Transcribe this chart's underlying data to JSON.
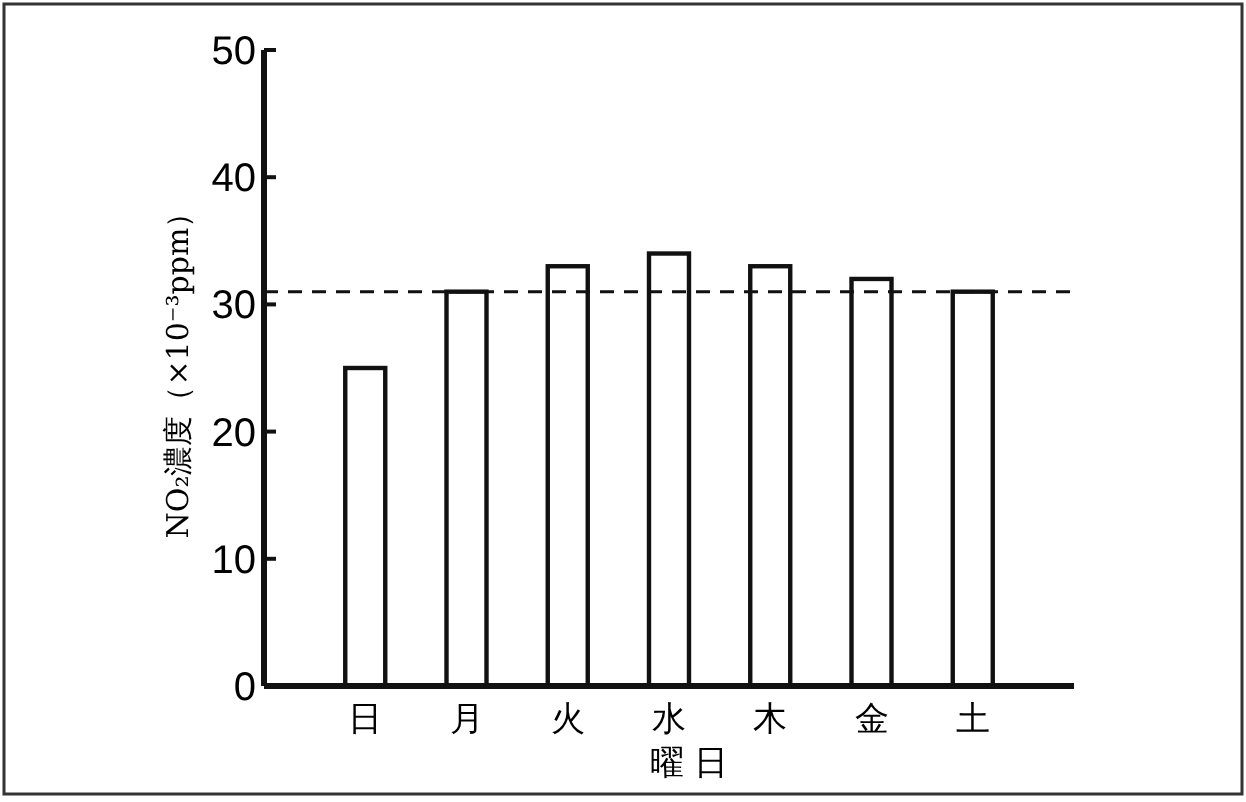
{
  "chart_data": {
    "type": "bar",
    "categories": [
      "日",
      "月",
      "火",
      "水",
      "木",
      "金",
      "土"
    ],
    "values": [
      25,
      31,
      33,
      34,
      33,
      32,
      31
    ],
    "color": "#ffffff",
    "xlabel": "曜 日",
    "ylabel": "NO₂濃度（×10⁻³ppm）",
    "ylim": [
      0,
      50
    ],
    "yticks": [
      0,
      10,
      20,
      30,
      40,
      50
    ],
    "grid": false,
    "ref_lines": [
      {
        "axis": "y",
        "value": 31,
        "color": "#111111",
        "line_style": "dashed"
      }
    ]
  }
}
